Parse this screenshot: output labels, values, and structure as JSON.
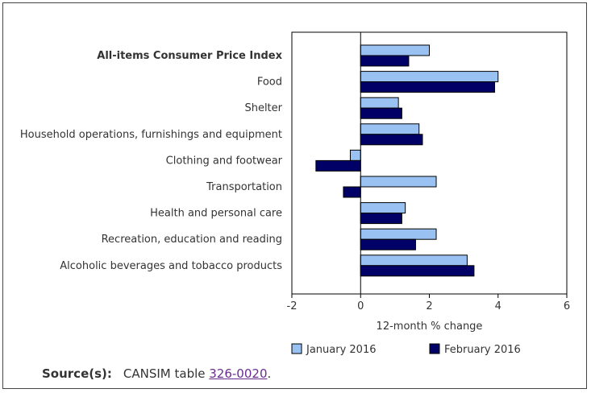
{
  "chart_data": {
    "type": "bar",
    "orientation": "horizontal",
    "categories": [
      "All-items Consumer Price Index",
      "Food",
      "Shelter",
      "Household operations, furnishings and equipment",
      "Clothing and footwear",
      "Transportation",
      "Health and personal care",
      "Recreation, education and reading",
      "Alcoholic beverages and tobacco products"
    ],
    "bold_categories": [
      "All-items Consumer Price Index"
    ],
    "series": [
      {
        "name": "January 2016",
        "color": "#99c2f2",
        "values": [
          2.0,
          4.0,
          1.1,
          1.7,
          -0.3,
          2.2,
          1.3,
          2.2,
          3.1
        ]
      },
      {
        "name": "February 2016",
        "color": "#000066",
        "values": [
          1.4,
          3.9,
          1.2,
          1.8,
          -1.3,
          -0.5,
          1.2,
          1.6,
          3.3
        ]
      }
    ],
    "xlabel": "12-month % change",
    "xlim": [
      -2,
      6
    ],
    "xticks": [
      -2,
      0,
      2,
      4,
      6
    ],
    "legend_position": "bottom",
    "grid": false
  },
  "source": {
    "label": "Source(s):",
    "text": "CANSIM table ",
    "link_text": "326-0020",
    "suffix": "."
  }
}
